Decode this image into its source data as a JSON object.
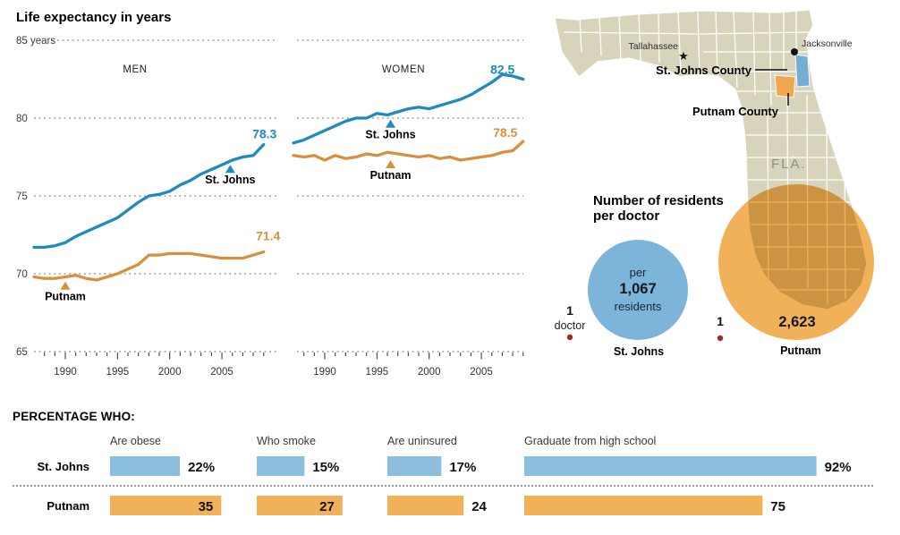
{
  "title": "Life expectancy in years",
  "colors": {
    "blue_line": "#1e8abd",
    "orange_line": "#d6913e",
    "blue_fill": "#8cbfde",
    "orange_fill": "#f0b159",
    "circle_blue": "#7db5da",
    "map_land": "#d8d4bc",
    "red_dot": "#9b2d20",
    "grid": "#9a9a9a"
  },
  "life_expectancy": {
    "title": "Life expectancy in years",
    "y_axis": {
      "labels": [
        {
          "text": "85 years",
          "value": 85
        },
        {
          "text": "80",
          "value": 80
        },
        {
          "text": "75",
          "value": 75
        },
        {
          "text": "70",
          "value": 70
        },
        {
          "text": "65",
          "value": 65
        }
      ]
    },
    "x_axis": {
      "tick_years": [
        1990,
        1995,
        2000,
        2005
      ]
    }
  },
  "chart_data": [
    {
      "type": "line",
      "title": "Life expectancy in years",
      "panel": "MEN",
      "ylim": [
        65,
        85
      ],
      "xticks": [
        1990,
        1995,
        2000,
        2005
      ],
      "x": [
        1987,
        1988,
        1989,
        1990,
        1991,
        1992,
        1993,
        1994,
        1995,
        1996,
        1997,
        1998,
        1999,
        2000,
        2001,
        2002,
        2003,
        2004,
        2005,
        2006,
        2007,
        2008,
        2009
      ],
      "series": [
        {
          "name": "St. Johns",
          "color": "#1e8abd",
          "end_label": "78.3",
          "values": [
            71.7,
            71.7,
            71.8,
            72.0,
            72.4,
            72.7,
            73.0,
            73.3,
            73.6,
            74.1,
            74.6,
            75.0,
            75.1,
            75.3,
            75.7,
            76.0,
            76.4,
            76.7,
            77.0,
            77.3,
            77.5,
            77.6,
            78.3
          ]
        },
        {
          "name": "Putnam",
          "color": "#d6913e",
          "end_label": "71.4",
          "values": [
            69.8,
            69.7,
            69.7,
            69.8,
            69.9,
            69.7,
            69.6,
            69.8,
            70.0,
            70.3,
            70.6,
            71.2,
            71.2,
            71.3,
            71.3,
            71.3,
            71.2,
            71.1,
            71.0,
            71.0,
            71.0,
            71.2,
            71.4
          ]
        }
      ],
      "annotations": [
        {
          "label": "St. Johns",
          "series": 0,
          "year": 2005.8,
          "value": 77.0
        },
        {
          "label": "Putnam",
          "series": 1,
          "year": 1990,
          "value": 69.5
        }
      ]
    },
    {
      "type": "line",
      "title": "Life expectancy in years",
      "panel": "WOMEN",
      "ylim": [
        65,
        85
      ],
      "xticks": [
        1990,
        1995,
        2000,
        2005
      ],
      "x": [
        1987,
        1988,
        1989,
        1990,
        1991,
        1992,
        1993,
        1994,
        1995,
        1996,
        1997,
        1998,
        1999,
        2000,
        2001,
        2002,
        2003,
        2004,
        2005,
        2006,
        2007,
        2008,
        2009
      ],
      "series": [
        {
          "name": "St. Johns",
          "color": "#1e8abd",
          "end_label": "82.5",
          "values": [
            78.4,
            78.6,
            78.9,
            79.2,
            79.5,
            79.8,
            80.0,
            80.0,
            80.3,
            80.2,
            80.4,
            80.6,
            80.7,
            80.6,
            80.8,
            81.0,
            81.2,
            81.5,
            81.9,
            82.3,
            82.8,
            82.7,
            82.5
          ]
        },
        {
          "name": "Putnam",
          "color": "#d6913e",
          "end_label": "78.5",
          "values": [
            77.6,
            77.5,
            77.6,
            77.3,
            77.6,
            77.4,
            77.5,
            77.7,
            77.6,
            77.8,
            77.7,
            77.6,
            77.5,
            77.6,
            77.4,
            77.5,
            77.3,
            77.4,
            77.5,
            77.6,
            77.8,
            77.9,
            78.5
          ]
        }
      ],
      "annotations": [
        {
          "label": "St. Johns",
          "series": 0,
          "year": 1996.3,
          "value": 79.9
        },
        {
          "label": "Putnam",
          "series": 1,
          "year": 1996.3,
          "value": 77.3
        }
      ]
    },
    {
      "type": "bubble",
      "title": "Number of residents per doctor",
      "categories": [
        "St. Johns",
        "Putnam"
      ],
      "values": [
        1067,
        2623
      ],
      "doctors": 1
    },
    {
      "type": "bar",
      "title": "PERCENTAGE WHO:",
      "categories": [
        "Are obese",
        "Who smoke",
        "Are uninsured",
        "Graduate from high school"
      ],
      "series": [
        {
          "name": "St. Johns",
          "color": "#8cbfde",
          "values": [
            22,
            15,
            17,
            92
          ],
          "value_labels": [
            "22%",
            "15%",
            "17%",
            "92%"
          ]
        },
        {
          "name": "Putnam",
          "color": "#f0b159",
          "values": [
            35,
            27,
            24,
            75
          ],
          "value_labels": [
            "35",
            "27",
            "24",
            "75"
          ]
        }
      ],
      "label_inside": [
        [
          false,
          false,
          false,
          false
        ],
        [
          true,
          true,
          false,
          false
        ]
      ],
      "xlim": [
        0,
        100
      ]
    }
  ],
  "map": {
    "state_label": "FLA.",
    "capital": {
      "name": "Tallahassee",
      "icon": "★"
    },
    "city": {
      "name": "Jacksonville"
    },
    "counties": [
      {
        "name": "St. Johns County"
      },
      {
        "name": "Putnam County"
      }
    ]
  },
  "residents_per_doctor": {
    "title_line1": "Number of residents",
    "title_line2": "per doctor",
    "items": [
      {
        "name": "St. Johns",
        "count_label": "1",
        "unit_label": "doctor",
        "circle_line1": "per",
        "circle_value": "1,067",
        "circle_line3": "residents"
      },
      {
        "name": "Putnam",
        "count_label": "1",
        "circle_value": "2,623"
      }
    ]
  },
  "percentage_section": {
    "heading": "PERCENTAGE WHO:",
    "rows": [
      {
        "label": "St. Johns"
      },
      {
        "label": "Putnam"
      }
    ]
  }
}
